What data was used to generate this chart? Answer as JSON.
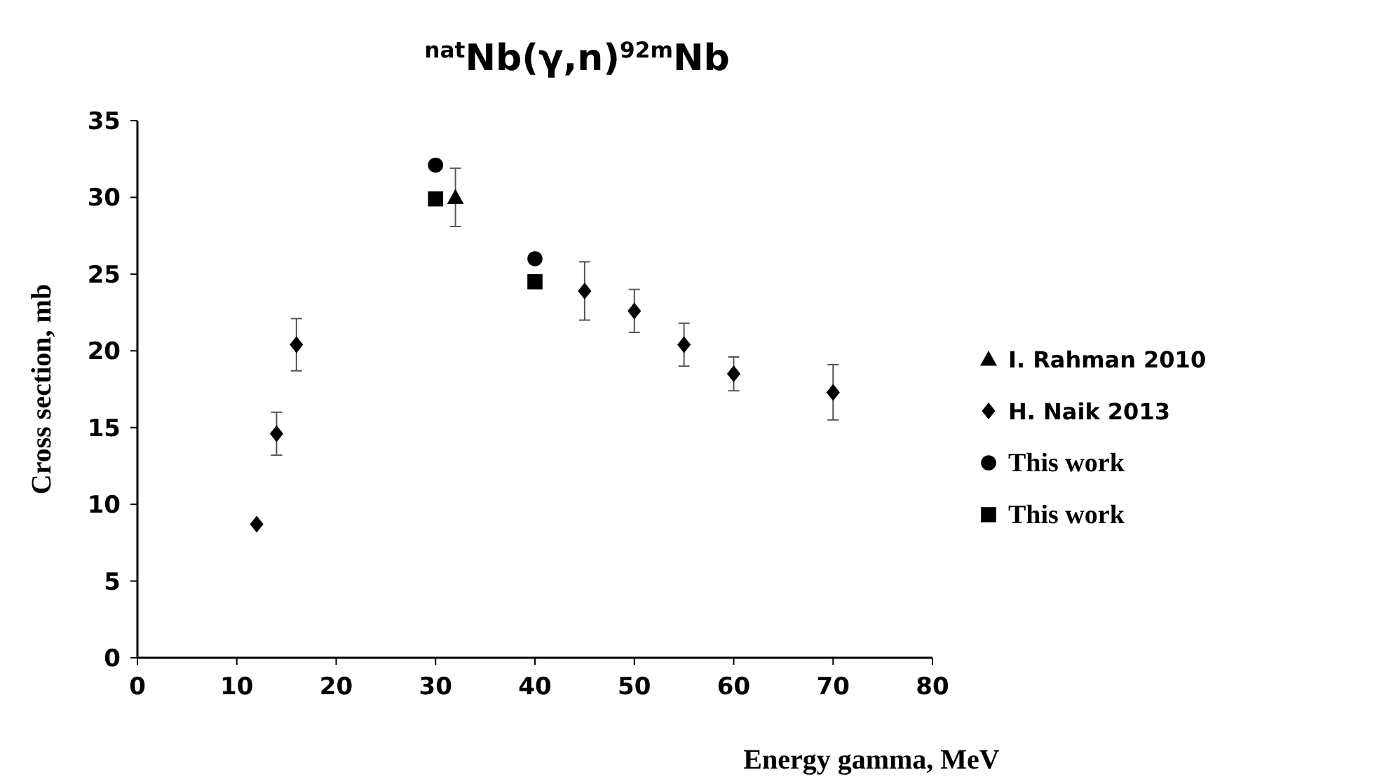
{
  "chart_data": {
    "type": "scatter",
    "title": "$^{nat}$Nb(γ,n)$^{92m}$Nb",
    "xlabel": "Energy gamma, MeV",
    "ylabel": "Cross section, mb",
    "xlim": [
      0,
      80
    ],
    "xticks": [
      0,
      10,
      20,
      30,
      40,
      50,
      60,
      70,
      80
    ],
    "ylim": [
      0,
      35
    ],
    "yticks": [
      0,
      5,
      10,
      15,
      20,
      25,
      30,
      35
    ],
    "grid": false,
    "legend": "right",
    "series": [
      {
        "name": "I. Rahman 2010",
        "color": "#000000",
        "marker": "triangle",
        "x": [
          32
        ],
        "values": [
          30
        ],
        "errors": [
          1.9
        ]
      },
      {
        "name": "H. Naik 2013",
        "color": "#000000",
        "marker": "diamond",
        "x": [
          12,
          14,
          16,
          45,
          50,
          55,
          60,
          70
        ],
        "values": [
          8.7,
          14.6,
          20.4,
          23.9,
          22.6,
          20.4,
          18.5,
          17.3
        ],
        "errors": [
          null,
          1.4,
          1.7,
          1.9,
          1.4,
          1.4,
          1.1,
          1.8
        ]
      },
      {
        "name": "This work",
        "color": "#000000",
        "marker": "circle",
        "x": [
          30,
          40
        ],
        "values": [
          32.1,
          26
        ]
      },
      {
        "name": "This work",
        "color": "#000000",
        "marker": "square",
        "x": [
          30,
          40
        ],
        "values": [
          29.9,
          24.5
        ]
      }
    ]
  }
}
